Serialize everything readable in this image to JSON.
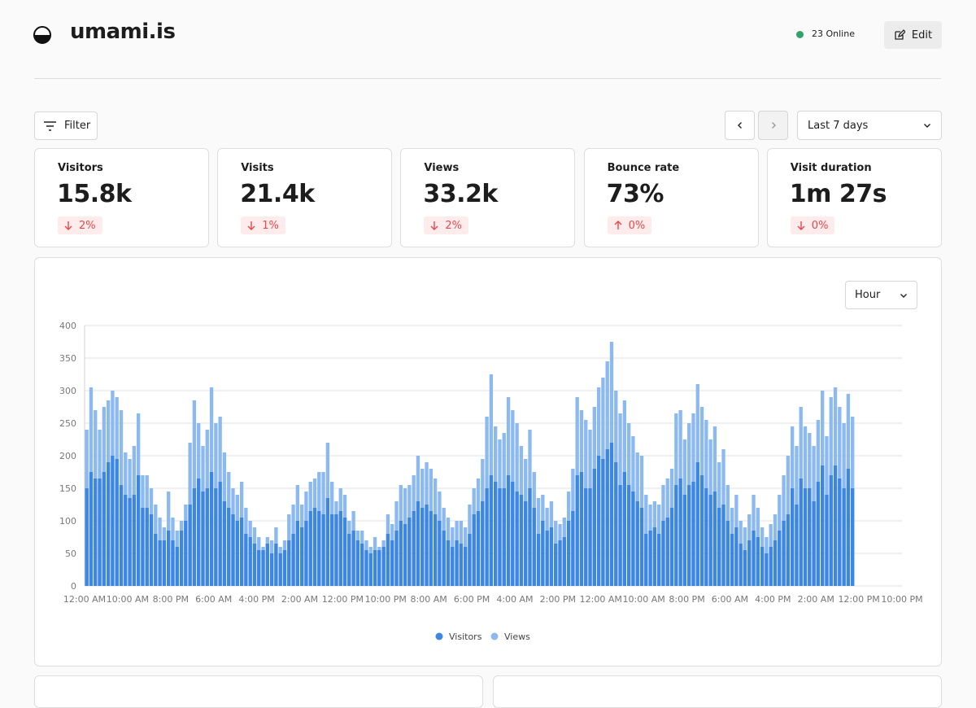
{
  "header": {
    "brand": "umami.is",
    "online": "23 Online",
    "edit": "Edit"
  },
  "toolbar": {
    "filter": "Filter",
    "date_range": "Last 7 days"
  },
  "metrics": [
    {
      "label": "Visitors",
      "value": "15.8k",
      "change": "2%",
      "direction": "down"
    },
    {
      "label": "Visits",
      "value": "21.4k",
      "change": "1%",
      "direction": "down"
    },
    {
      "label": "Views",
      "value": "33.2k",
      "change": "2%",
      "direction": "down"
    },
    {
      "label": "Bounce rate",
      "value": "73%",
      "change": "0%",
      "direction": "up"
    },
    {
      "label": "Visit duration",
      "value": "1m 27s",
      "change": "0%",
      "direction": "down"
    }
  ],
  "chart_data": {
    "type": "bar",
    "unit_selector": "Hour",
    "categories": [
      "12:00 AM",
      null,
      null,
      null,
      null,
      null,
      null,
      null,
      null,
      null,
      "10:00 AM",
      null,
      null,
      null,
      null,
      null,
      null,
      null,
      null,
      null,
      "8:00 PM",
      null,
      null,
      null,
      null,
      null,
      null,
      null,
      null,
      null,
      "6:00 AM",
      null,
      null,
      null,
      null,
      null,
      null,
      null,
      null,
      null,
      "4:00 PM",
      null,
      null,
      null,
      null,
      null,
      null,
      null,
      null,
      null,
      "2:00 AM",
      null,
      null,
      null,
      null,
      null,
      null,
      null,
      null,
      null,
      "12:00 PM",
      null,
      null,
      null,
      null,
      null,
      null,
      null,
      null,
      null,
      "10:00 PM",
      null,
      null,
      null,
      null,
      null,
      null,
      null,
      null,
      null,
      "8:00 AM",
      null,
      null,
      null,
      null,
      null,
      null,
      null,
      null,
      null,
      "6:00 PM",
      null,
      null,
      null,
      null,
      null,
      null,
      null,
      null,
      null,
      "4:00 AM",
      null,
      null,
      null,
      null,
      null,
      null,
      null,
      null,
      null,
      "2:00 PM",
      null,
      null,
      null,
      null,
      null,
      null,
      null,
      null,
      null,
      "12:00 AM",
      null,
      null,
      null,
      null,
      null,
      null,
      null,
      null,
      null,
      "10:00 AM",
      null,
      null,
      null,
      null,
      null,
      null,
      null,
      null,
      null,
      "8:00 PM",
      null,
      null,
      null,
      null,
      null,
      null,
      null,
      null,
      null,
      "6:00 AM",
      null,
      null,
      null,
      null,
      null,
      null,
      null,
      null,
      null,
      "4:00 PM",
      null,
      null,
      null,
      null,
      null,
      null,
      null,
      null,
      null,
      "2:00 AM",
      null,
      null,
      null,
      null,
      null,
      null,
      null,
      null,
      null,
      "12:00 PM",
      null,
      null,
      null,
      null,
      null,
      null,
      null,
      null,
      null,
      "10:00 PM"
    ],
    "series": [
      {
        "name": "Visitors",
        "color": "#3d87e2",
        "values": [
          150,
          175,
          165,
          165,
          175,
          190,
          200,
          195,
          155,
          140,
          135,
          140,
          170,
          120,
          120,
          110,
          80,
          70,
          70,
          85,
          70,
          60,
          85,
          100,
          125,
          150,
          165,
          145,
          150,
          175,
          150,
          160,
          130,
          120,
          110,
          100,
          105,
          80,
          75,
          65,
          55,
          55,
          65,
          50,
          65,
          50,
          55,
          70,
          80,
          100,
          90,
          100,
          115,
          120,
          115,
          110,
          135,
          110,
          110,
          115,
          105,
          80,
          85,
          70,
          65,
          55,
          50,
          55,
          55,
          60,
          80,
          70,
          85,
          100,
          95,
          105,
          115,
          130,
          120,
          125,
          115,
          110,
          100,
          85,
          70,
          60,
          70,
          65,
          60,
          80,
          110,
          115,
          130,
          150,
          170,
          160,
          150,
          150,
          170,
          160,
          145,
          140,
          130,
          150,
          120,
          80,
          100,
          85,
          90,
          65,
          70,
          75,
          100,
          115,
          170,
          175,
          150,
          150,
          180,
          200,
          195,
          210,
          220,
          190,
          155,
          175,
          155,
          145,
          130,
          120,
          80,
          85,
          90,
          80,
          100,
          105,
          120,
          155,
          165,
          140,
          155,
          160,
          190,
          170,
          150,
          140,
          145,
          120,
          125,
          100,
          80,
          90,
          65,
          55,
          70,
          85,
          75,
          60,
          50,
          60,
          70,
          85,
          100,
          110,
          150,
          125,
          165,
          150,
          150,
          130,
          160,
          185,
          140,
          170,
          185,
          165,
          150,
          180,
          150,
          null,
          null,
          null,
          null,
          null,
          null,
          null,
          null,
          null,
          null,
          null,
          null
        ]
      },
      {
        "name": "Views",
        "color": "#8cbaf0",
        "values": [
          240,
          305,
          270,
          240,
          275,
          285,
          300,
          290,
          270,
          205,
          195,
          215,
          265,
          170,
          170,
          150,
          125,
          105,
          90,
          145,
          105,
          85,
          100,
          125,
          220,
          285,
          250,
          215,
          240,
          305,
          250,
          260,
          205,
          175,
          150,
          140,
          160,
          120,
          100,
          90,
          75,
          60,
          75,
          70,
          90,
          60,
          70,
          110,
          125,
          155,
          125,
          145,
          160,
          165,
          175,
          175,
          220,
          160,
          130,
          150,
          140,
          100,
          115,
          85,
          85,
          70,
          60,
          75,
          60,
          70,
          110,
          95,
          130,
          155,
          150,
          155,
          170,
          200,
          180,
          190,
          180,
          165,
          145,
          120,
          105,
          90,
          100,
          100,
          90,
          125,
          150,
          165,
          195,
          260,
          325,
          245,
          225,
          235,
          290,
          270,
          250,
          215,
          195,
          240,
          175,
          135,
          140,
          120,
          130,
          100,
          95,
          105,
          145,
          180,
          290,
          270,
          255,
          240,
          275,
          305,
          320,
          345,
          375,
          300,
          265,
          285,
          250,
          230,
          205,
          200,
          140,
          125,
          130,
          125,
          155,
          165,
          180,
          265,
          270,
          225,
          250,
          265,
          310,
          275,
          255,
          225,
          245,
          190,
          210,
          155,
          120,
          140,
          100,
          90,
          110,
          140,
          120,
          90,
          75,
          95,
          110,
          140,
          170,
          200,
          245,
          215,
          275,
          245,
          235,
          215,
          255,
          300,
          230,
          290,
          305,
          275,
          250,
          295,
          260,
          null,
          null,
          null,
          null,
          null,
          null,
          null,
          null,
          null,
          null,
          null,
          null
        ]
      }
    ],
    "ylim": [
      0,
      400
    ],
    "yticks": [
      0,
      50,
      100,
      150,
      200,
      250,
      300,
      350,
      400
    ],
    "grid": true
  }
}
